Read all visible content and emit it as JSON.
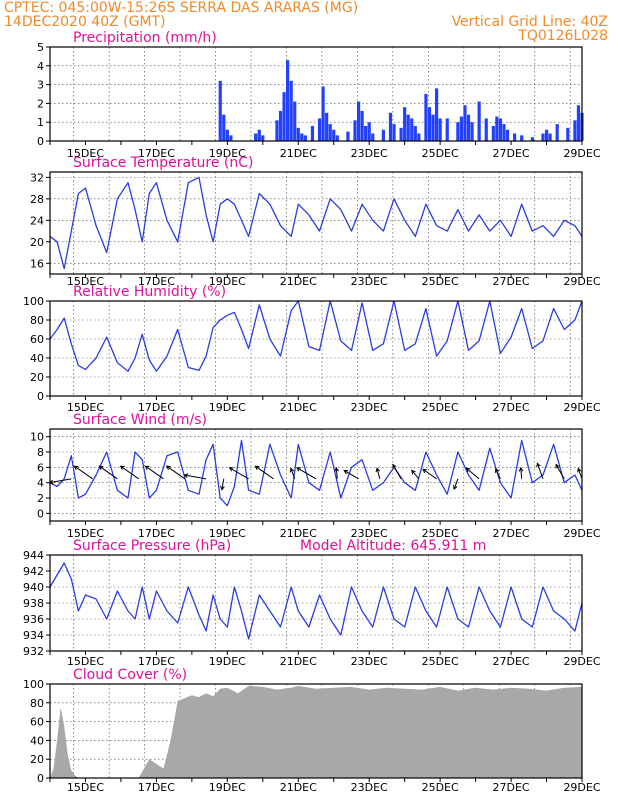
{
  "header": {
    "station": "CPTEC:   045:00W-15:26S   SERRA DAS ARARAS (MG)",
    "datetime": "14DEC2020 40Z (GMT)",
    "grid_note": "Vertical Grid Line: 40Z",
    "run_id": "TQ0126L028"
  },
  "colors": {
    "header": "#f08a2a",
    "titles": "#e0109a",
    "series": "#2b3de0",
    "precip": "#2440ff",
    "cloud": "#a8a8a8",
    "arrows": "#000000"
  },
  "chart_data": [
    {
      "id": "precip",
      "type": "bar",
      "title": "Precipitation (mm/h)",
      "ylim": [
        0,
        5
      ],
      "yticks": [
        0,
        1,
        2,
        3,
        4,
        5
      ],
      "xlim": [
        14,
        29
      ],
      "xticks": [
        "15DEC",
        "17DEC",
        "19DEC",
        "21DEC",
        "23DEC",
        "25DEC",
        "27DEC",
        "29DEC"
      ],
      "x": [
        18.8,
        18.9,
        19.0,
        19.1,
        19.8,
        19.9,
        20.0,
        20.4,
        20.5,
        20.6,
        20.7,
        20.8,
        20.9,
        21.0,
        21.1,
        21.2,
        21.4,
        21.6,
        21.7,
        21.8,
        21.9,
        22.0,
        22.1,
        22.4,
        22.6,
        22.7,
        22.8,
        22.9,
        23.0,
        23.1,
        23.4,
        23.6,
        23.7,
        23.9,
        24.0,
        24.1,
        24.2,
        24.3,
        24.4,
        24.6,
        24.7,
        24.8,
        24.9,
        25.0,
        25.2,
        25.5,
        25.6,
        25.7,
        25.8,
        25.9,
        26.1,
        26.3,
        26.5,
        26.6,
        26.7,
        26.8,
        26.9,
        27.1,
        27.3,
        27.6,
        27.9,
        28.0,
        28.1,
        28.3,
        28.6,
        28.8,
        28.9,
        29.0
      ],
      "values": [
        3.2,
        1.4,
        0.6,
        0.3,
        0.4,
        0.6,
        0.3,
        1.1,
        1.6,
        2.6,
        4.3,
        3.2,
        2.1,
        0.7,
        0.4,
        0.3,
        0.8,
        1.2,
        2.9,
        1.5,
        0.9,
        0.6,
        0.3,
        0.5,
        1.1,
        2.1,
        1.6,
        0.8,
        1.0,
        0.4,
        0.6,
        1.5,
        0.9,
        0.7,
        1.8,
        1.4,
        1.2,
        0.8,
        0.4,
        2.5,
        1.8,
        1.4,
        2.8,
        1.2,
        1.2,
        1.0,
        1.3,
        1.9,
        1.4,
        1.0,
        2.1,
        1.2,
        0.8,
        1.3,
        1.2,
        0.9,
        0.6,
        0.4,
        0.3,
        0.2,
        0.4,
        0.6,
        0.4,
        0.9,
        0.7,
        1.1,
        1.9,
        1.5
      ]
    },
    {
      "id": "temperature",
      "type": "line",
      "title": "Surface Temperature (nC)",
      "ylim": [
        14,
        33
      ],
      "yticks": [
        16,
        20,
        24,
        28,
        32
      ],
      "xlim": [
        14,
        29
      ],
      "xticks": [
        "15DEC",
        "17DEC",
        "19DEC",
        "21DEC",
        "23DEC",
        "25DEC",
        "27DEC",
        "29DEC"
      ],
      "x": [
        14.0,
        14.2,
        14.4,
        14.6,
        14.8,
        15.0,
        15.3,
        15.6,
        15.9,
        16.2,
        16.4,
        16.6,
        16.8,
        17.0,
        17.3,
        17.6,
        17.9,
        18.2,
        18.4,
        18.6,
        18.8,
        19.0,
        19.2,
        19.4,
        19.6,
        19.9,
        20.2,
        20.5,
        20.8,
        21.0,
        21.3,
        21.6,
        21.9,
        22.2,
        22.5,
        22.8,
        23.1,
        23.4,
        23.7,
        24.0,
        24.3,
        24.6,
        24.9,
        25.2,
        25.5,
        25.8,
        26.1,
        26.4,
        26.7,
        27.0,
        27.3,
        27.6,
        27.9,
        28.2,
        28.5,
        28.8,
        29.0
      ],
      "values": [
        21,
        20,
        15,
        22,
        29,
        30,
        23,
        18,
        28,
        31,
        26,
        20,
        29,
        31,
        24,
        20,
        31,
        32,
        25,
        20,
        27,
        28,
        27,
        24,
        21,
        29,
        27,
        23,
        21,
        27,
        25,
        22,
        28,
        26,
        22,
        27,
        24,
        22,
        28,
        24,
        21,
        27,
        23,
        22,
        26,
        22,
        25,
        22,
        24,
        21,
        27,
        22,
        23,
        21,
        24,
        23,
        21
      ]
    },
    {
      "id": "humidity",
      "type": "line",
      "title": "Relative Humidity (%)",
      "ylim": [
        0,
        100
      ],
      "yticks": [
        0,
        20,
        40,
        60,
        80,
        100
      ],
      "xlim": [
        14,
        29
      ],
      "xticks": [
        "15DEC",
        "17DEC",
        "19DEC",
        "21DEC",
        "23DEC",
        "25DEC",
        "27DEC",
        "29DEC"
      ],
      "x": [
        14.0,
        14.2,
        14.4,
        14.6,
        14.8,
        15.0,
        15.3,
        15.6,
        15.9,
        16.2,
        16.4,
        16.6,
        16.8,
        17.0,
        17.3,
        17.6,
        17.9,
        18.2,
        18.4,
        18.6,
        18.8,
        19.0,
        19.2,
        19.4,
        19.6,
        19.9,
        20.2,
        20.5,
        20.8,
        21.0,
        21.3,
        21.6,
        21.9,
        22.2,
        22.5,
        22.8,
        23.1,
        23.4,
        23.7,
        24.0,
        24.3,
        24.6,
        24.9,
        25.2,
        25.5,
        25.8,
        26.1,
        26.4,
        26.7,
        27.0,
        27.3,
        27.6,
        27.9,
        28.2,
        28.5,
        28.8,
        29.0
      ],
      "values": [
        60,
        70,
        82,
        55,
        32,
        28,
        40,
        62,
        35,
        26,
        40,
        65,
        38,
        26,
        42,
        70,
        30,
        27,
        42,
        72,
        80,
        85,
        88,
        70,
        50,
        96,
        60,
        42,
        90,
        100,
        52,
        48,
        100,
        58,
        48,
        98,
        48,
        55,
        100,
        48,
        55,
        92,
        42,
        58,
        100,
        48,
        58,
        100,
        45,
        62,
        92,
        50,
        58,
        92,
        70,
        80,
        100
      ]
    },
    {
      "id": "wind",
      "type": "line",
      "title": "Surface Wind (m/s)",
      "ylim": [
        -1,
        11
      ],
      "yticks": [
        0,
        2,
        4,
        6,
        8,
        10
      ],
      "xlim": [
        14,
        29
      ],
      "xticks": [
        "15DEC",
        "17DEC",
        "19DEC",
        "21DEC",
        "23DEC",
        "25DEC",
        "27DEC",
        "29DEC"
      ],
      "x": [
        14.0,
        14.2,
        14.4,
        14.6,
        14.8,
        15.0,
        15.3,
        15.6,
        15.9,
        16.2,
        16.4,
        16.6,
        16.8,
        17.0,
        17.3,
        17.6,
        17.9,
        18.2,
        18.4,
        18.6,
        18.8,
        19.0,
        19.2,
        19.4,
        19.6,
        19.9,
        20.2,
        20.5,
        20.8,
        21.0,
        21.3,
        21.6,
        21.9,
        22.2,
        22.5,
        22.8,
        23.1,
        23.4,
        23.7,
        24.0,
        24.3,
        24.6,
        24.9,
        25.2,
        25.5,
        25.8,
        26.1,
        26.4,
        26.7,
        27.0,
        27.3,
        27.6,
        27.9,
        28.2,
        28.5,
        28.8,
        29.0
      ],
      "values": [
        4,
        3.5,
        4.5,
        7.5,
        2,
        2.5,
        5,
        8,
        3,
        2,
        8,
        7,
        2,
        3,
        7.5,
        8,
        3,
        2.5,
        7,
        9,
        2,
        1,
        3.5,
        9.5,
        3,
        2.5,
        9,
        5,
        2,
        9,
        4,
        3,
        8,
        2,
        6,
        7,
        3,
        4,
        6,
        4,
        3,
        8,
        5,
        2.5,
        8,
        5,
        3,
        8.5,
        4,
        2,
        9.5,
        4,
        5,
        9,
        4,
        5,
        3
      ],
      "arrows": [
        [
          14.6,
          4.5,
          4,
          80
        ],
        [
          15.2,
          4.5,
          4,
          125
        ],
        [
          15.9,
          4.5,
          4,
          125
        ],
        [
          16.5,
          4.5,
          4,
          125
        ],
        [
          17.2,
          4.5,
          4,
          125
        ],
        [
          17.8,
          4.5,
          4,
          125
        ],
        [
          18.4,
          4.5,
          4,
          100
        ],
        [
          18.9,
          4.5,
          2,
          10
        ],
        [
          19.6,
          4.5,
          4,
          120
        ],
        [
          20.3,
          4.5,
          4,
          125
        ],
        [
          20.9,
          4.5,
          2,
          160
        ],
        [
          21.5,
          4.5,
          4,
          120
        ],
        [
          22.1,
          4.5,
          2,
          175
        ],
        [
          22.7,
          4.5,
          3,
          120
        ],
        [
          23.3,
          4.5,
          2,
          165
        ],
        [
          23.9,
          4.5,
          3,
          150
        ],
        [
          24.4,
          4.5,
          2,
          140
        ],
        [
          24.9,
          4.5,
          3,
          125
        ],
        [
          25.5,
          4.5,
          2,
          20
        ],
        [
          26.1,
          4.5,
          3,
          130
        ],
        [
          26.7,
          4.5,
          2,
          155
        ],
        [
          27.3,
          4.5,
          2,
          175
        ],
        [
          27.9,
          4.5,
          3,
          160
        ],
        [
          28.5,
          4.5,
          3,
          150
        ],
        [
          29.0,
          4.5,
          2,
          160
        ]
      ]
    },
    {
      "id": "pressure",
      "type": "line",
      "title": "Surface Pressure (hPa)",
      "annotation": "Model Altitude: 645.911 m",
      "ylim": [
        932,
        944
      ],
      "yticks": [
        932,
        934,
        936,
        938,
        940,
        942,
        944
      ],
      "xlim": [
        14,
        29
      ],
      "xticks": [
        "15DEC",
        "17DEC",
        "19DEC",
        "21DEC",
        "23DEC",
        "25DEC",
        "27DEC",
        "29DEC"
      ],
      "x": [
        14.0,
        14.2,
        14.4,
        14.6,
        14.8,
        15.0,
        15.3,
        15.6,
        15.9,
        16.2,
        16.4,
        16.6,
        16.8,
        17.0,
        17.3,
        17.6,
        17.9,
        18.2,
        18.4,
        18.6,
        18.8,
        19.0,
        19.2,
        19.4,
        19.6,
        19.9,
        20.2,
        20.5,
        20.8,
        21.0,
        21.3,
        21.6,
        21.9,
        22.2,
        22.5,
        22.8,
        23.1,
        23.4,
        23.7,
        24.0,
        24.3,
        24.6,
        24.9,
        25.2,
        25.5,
        25.8,
        26.1,
        26.4,
        26.7,
        27.0,
        27.3,
        27.6,
        27.9,
        28.2,
        28.5,
        28.8,
        29.0
      ],
      "values": [
        940,
        941.5,
        943,
        941,
        937,
        939,
        938.5,
        936,
        939.5,
        937,
        936,
        940,
        936,
        939.5,
        937,
        935.5,
        940,
        936.5,
        934.5,
        939,
        936,
        935,
        940,
        937,
        933.5,
        939,
        937,
        935,
        940,
        937,
        935,
        939,
        936,
        934,
        940,
        937,
        935,
        940,
        936,
        935,
        940,
        937,
        935,
        940,
        936,
        935,
        940,
        937,
        935,
        940,
        936,
        935,
        940,
        937,
        936,
        934.5,
        938
      ]
    },
    {
      "id": "cloud",
      "type": "area",
      "title": "Cloud Cover (%)",
      "ylim": [
        0,
        100
      ],
      "yticks": [
        0,
        20,
        40,
        60,
        80,
        100
      ],
      "xlim": [
        14,
        29
      ],
      "xticks": [
        "15DEC",
        "17DEC",
        "19DEC",
        "21DEC",
        "23DEC",
        "25DEC",
        "27DEC",
        "29DEC"
      ],
      "x": [
        14.0,
        14.1,
        14.2,
        14.3,
        14.4,
        14.5,
        14.6,
        14.7,
        14.8,
        14.9,
        15.0,
        16.5,
        16.8,
        17.0,
        17.2,
        17.4,
        17.6,
        17.8,
        18.0,
        18.2,
        18.4,
        18.6,
        18.8,
        19.0,
        19.3,
        19.6,
        20.0,
        20.4,
        20.8,
        21.0,
        21.5,
        22.0,
        22.5,
        23.0,
        23.5,
        24.0,
        24.5,
        25.0,
        25.5,
        26.0,
        26.5,
        27.0,
        27.5,
        28.0,
        28.5,
        29.0
      ],
      "values": [
        0,
        10,
        40,
        75,
        55,
        25,
        8,
        3,
        0,
        0,
        0,
        0,
        20,
        15,
        10,
        40,
        82,
        85,
        88,
        86,
        90,
        87,
        95,
        96,
        90,
        98,
        97,
        94,
        96,
        98,
        95,
        96,
        97,
        94,
        96,
        95,
        94,
        97,
        93,
        96,
        94,
        96,
        95,
        93,
        96,
        97
      ]
    }
  ]
}
